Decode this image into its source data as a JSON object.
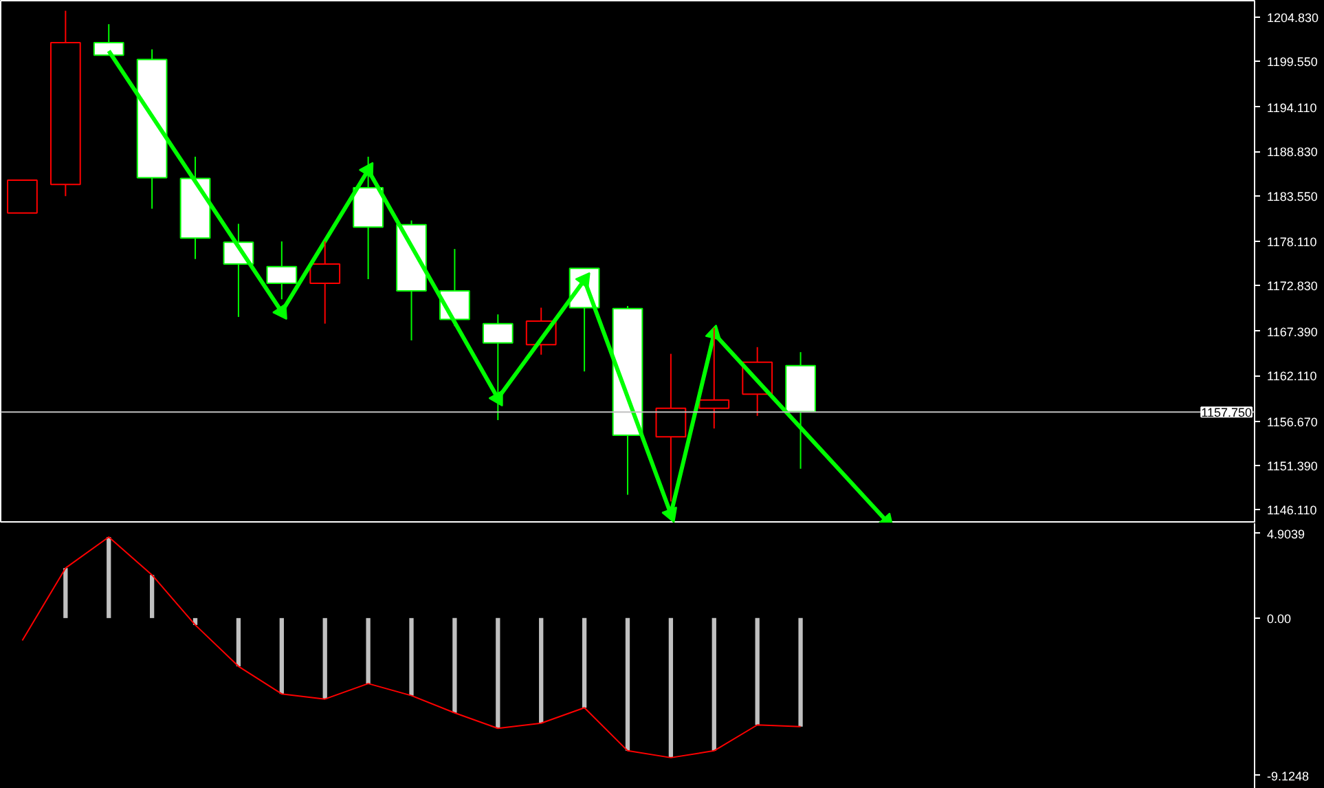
{
  "chart_data": [
    {
      "type": "candlestick",
      "categories": [
        null,
        null,
        null,
        null,
        null,
        null,
        null,
        null,
        null,
        null,
        null,
        null,
        null,
        null,
        null,
        null,
        null,
        null,
        null,
        null,
        null,
        null,
        null,
        null,
        null,
        null,
        null,
        null,
        null
      ],
      "ohlc": [
        [
          1181.5,
          1185.4,
          1181.5,
          1185.4
        ],
        [
          1184.9,
          1205.6,
          1183.5,
          1201.8
        ],
        [
          1201.8,
          1204.0,
          1200.3,
          1200.3
        ],
        [
          1199.8,
          1201.0,
          1182.0,
          1185.7
        ],
        [
          1185.6,
          1188.2,
          1176.0,
          1178.5
        ],
        [
          1178.0,
          1180.2,
          1169.1,
          1175.4
        ],
        [
          1175.1,
          1178.1,
          1171.2,
          1173.1
        ],
        [
          1173.1,
          1178.1,
          1168.3,
          1175.4
        ],
        [
          1184.5,
          1188.2,
          1173.6,
          1179.8
        ],
        [
          1180.1,
          1180.6,
          1166.3,
          1172.2
        ],
        [
          1172.2,
          1177.2,
          1168.0,
          1168.8
        ],
        [
          1168.3,
          1169.4,
          1156.8,
          1166.0
        ],
        [
          1165.8,
          1170.2,
          1164.6,
          1168.6
        ],
        [
          1174.9,
          1174.9,
          1162.6,
          1170.2
        ],
        [
          1170.1,
          1170.4,
          1147.9,
          1155.0
        ],
        [
          1154.8,
          1164.7,
          1147.1,
          1158.2
        ],
        [
          1158.2,
          1167.8,
          1155.8,
          1159.2
        ],
        [
          1159.9,
          1165.5,
          1157.3,
          1163.7
        ],
        [
          1163.3,
          1164.9,
          1151.0,
          1157.8
        ],
        null,
        null,
        null,
        null,
        null,
        null,
        null,
        null,
        null,
        null
      ],
      "colors": [
        "#ff0000",
        "#ff0000",
        "#00ff00",
        "#00ff00",
        "#00ff00",
        "#00ff00",
        "#00ff00",
        "#ff0000",
        "#00ff00",
        "#00ff00",
        "#00ff00",
        "#00ff00",
        "#ff0000",
        "#00ff00",
        "#00ff00",
        "#ff0000",
        "#ff0000",
        "#ff0000",
        "#00ff00",
        null,
        null,
        null,
        null,
        null,
        null,
        null,
        null,
        null,
        null
      ],
      "series": [
        {
          "type": "line",
          "color": "#00ff00",
          "marker": "triangle",
          "values": [
            null,
            null,
            1200.8,
            null,
            null,
            null,
            1169.7,
            null,
            1186.6,
            null,
            null,
            1159.4,
            null,
            1173.5,
            null,
            1145.6,
            1167.1,
            null,
            null,
            null,
            1144.7,
            null,
            null,
            null,
            null,
            null,
            null,
            null,
            null
          ]
        }
      ],
      "ylim": [
        1144.5,
        1206.8
      ],
      "yticks": [
        {
          "value": 1204.83,
          "label": "1204.830"
        },
        {
          "value": 1199.55,
          "label": "1199.550"
        },
        {
          "value": 1194.11,
          "label": "1194.110"
        },
        {
          "value": 1188.83,
          "label": "1188.830"
        },
        {
          "value": 1183.55,
          "label": "1183.550"
        },
        {
          "value": 1178.11,
          "label": "1178.110"
        },
        {
          "value": 1172.83,
          "label": "1172.830"
        },
        {
          "value": 1167.39,
          "label": "1167.390"
        },
        {
          "value": 1162.11,
          "label": "1162.110"
        },
        {
          "value": 1156.67,
          "label": "1156.670"
        },
        {
          "value": 1151.39,
          "label": "1151.390"
        },
        {
          "value": 1146.11,
          "label": "1146.110"
        }
      ],
      "ref_lines": [
        {
          "axis": "y",
          "value": 1157.75,
          "label": "1157.750",
          "color": "#c0c0c0"
        }
      ],
      "tick_labels": "y",
      "grid": false
    },
    {
      "type": "bar",
      "categories": [
        null,
        null,
        null,
        null,
        null,
        null,
        null,
        null,
        null,
        null,
        null,
        null,
        null,
        null,
        null,
        null,
        null,
        null,
        null,
        null,
        null,
        null,
        null,
        null,
        null,
        null,
        null,
        null,
        null
      ],
      "series": [
        {
          "type": "bar",
          "color": "#c0c0c0",
          "values": [
            null,
            2.9,
            4.7,
            2.5,
            -0.4,
            -2.8,
            -4.4,
            -4.7,
            -3.8,
            -4.5,
            -5.5,
            -6.4,
            -6.1,
            -5.2,
            -7.7,
            -8.1,
            -7.7,
            -6.2,
            -6.3,
            null,
            null,
            null,
            null,
            null,
            null,
            null,
            null,
            null,
            null
          ]
        },
        {
          "type": "line",
          "color": "#ff0000",
          "values": [
            -1.3,
            2.9,
            4.7,
            2.5,
            -0.4,
            -2.8,
            -4.4,
            -4.7,
            -3.8,
            -4.5,
            -5.5,
            -6.4,
            -6.1,
            -5.2,
            -7.7,
            -8.1,
            -7.7,
            -6.2,
            -6.3,
            null,
            null,
            null,
            null,
            null,
            null,
            null,
            null,
            null,
            null
          ]
        }
      ],
      "ylim": [
        -9.9,
        5.5
      ],
      "yticks": [
        {
          "value": 4.9039,
          "label": "4.9039"
        },
        {
          "value": 0,
          "label": "0.00"
        },
        {
          "value": -9.1248,
          "label": "-9.1248"
        }
      ],
      "tick_labels": "y",
      "grid": false
    }
  ]
}
